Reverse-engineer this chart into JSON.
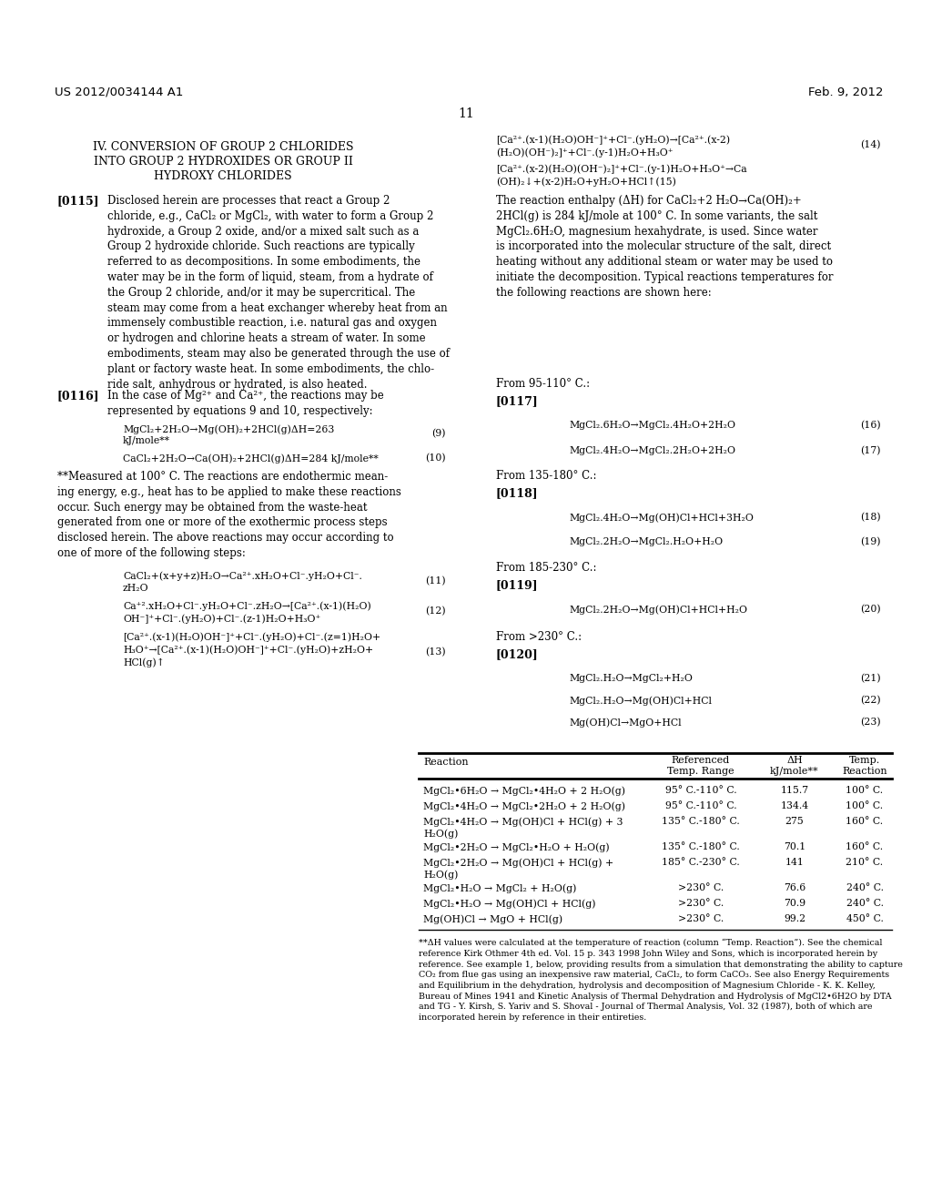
{
  "page_number": "11",
  "left_header": "US 2012/0034144 A1",
  "right_header": "Feb. 9, 2012",
  "bg_color": "#ffffff"
}
